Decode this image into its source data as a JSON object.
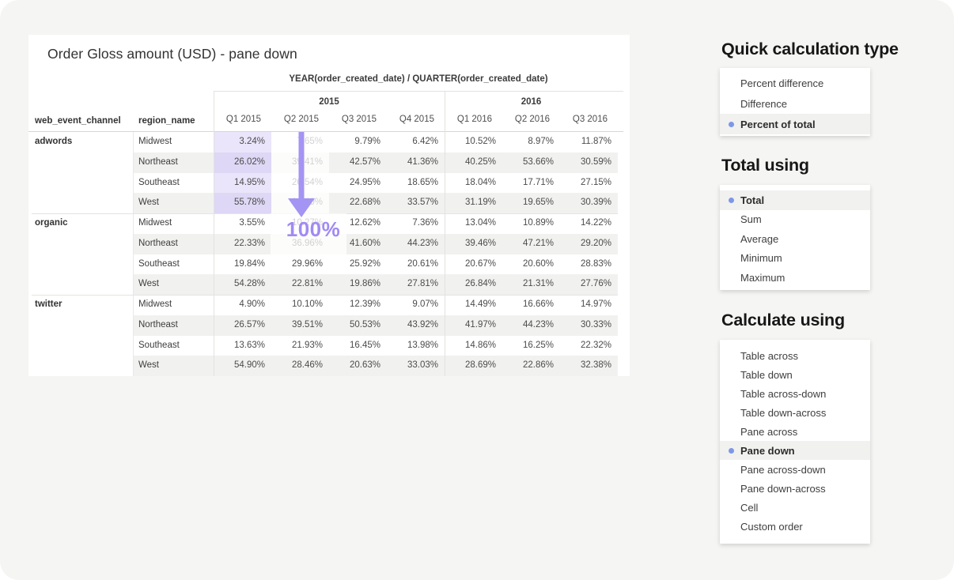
{
  "viz": {
    "title": "Order Gloss amount (USD) - pane down",
    "column_field_header": "YEAR(order_created_date) / QUARTER(order_created_date)",
    "row_field_headers": {
      "channel": "web_event_channel",
      "region": "region_name"
    },
    "year_groups": [
      {
        "label": "2015"
      },
      {
        "label": "2016"
      }
    ],
    "quarter_labels": [
      "Q1 2015",
      "Q2 2015",
      "Q3 2015",
      "Q4 2015",
      "Q1 2016",
      "Q2 2016",
      "Q3 2016"
    ],
    "panes": [
      {
        "channel": "adwords",
        "rows": [
          {
            "region": "Midwest",
            "values": [
              "3.24%",
              "7.65%",
              "9.79%",
              "6.42%",
              "10.52%",
              "8.97%",
              "11.87%"
            ]
          },
          {
            "region": "Northeast",
            "values": [
              "26.02%",
              "39.41%",
              "42.57%",
              "41.36%",
              "40.25%",
              "53.66%",
              "30.59%"
            ]
          },
          {
            "region": "Southeast",
            "values": [
              "14.95%",
              "26.54%",
              "24.95%",
              "18.65%",
              "18.04%",
              "17.71%",
              "27.15%"
            ]
          },
          {
            "region": "West",
            "values": [
              "55.78%",
              "26.40%",
              "22.68%",
              "33.57%",
              "31.19%",
              "19.65%",
              "30.39%"
            ]
          }
        ]
      },
      {
        "channel": "organic",
        "rows": [
          {
            "region": "Midwest",
            "values": [
              "3.55%",
              "10.27%",
              "12.62%",
              "7.36%",
              "13.04%",
              "10.89%",
              "14.22%"
            ]
          },
          {
            "region": "Northeast",
            "values": [
              "22.33%",
              "36.96%",
              "41.60%",
              "44.23%",
              "39.46%",
              "47.21%",
              "29.20%"
            ]
          },
          {
            "region": "Southeast",
            "values": [
              "19.84%",
              "29.96%",
              "25.92%",
              "20.61%",
              "20.67%",
              "20.60%",
              "28.83%"
            ]
          },
          {
            "region": "West",
            "values": [
              "54.28%",
              "22.81%",
              "19.86%",
              "27.81%",
              "26.84%",
              "21.31%",
              "27.76%"
            ]
          }
        ]
      },
      {
        "channel": "twitter",
        "rows": [
          {
            "region": "Midwest",
            "values": [
              "4.90%",
              "10.10%",
              "12.39%",
              "9.07%",
              "14.49%",
              "16.66%",
              "14.97%"
            ]
          },
          {
            "region": "Northeast",
            "values": [
              "26.57%",
              "39.51%",
              "50.53%",
              "43.92%",
              "41.97%",
              "44.23%",
              "30.33%"
            ]
          },
          {
            "region": "Southeast",
            "values": [
              "13.63%",
              "21.93%",
              "16.45%",
              "13.98%",
              "14.86%",
              "16.25%",
              "22.32%"
            ]
          },
          {
            "region": "West",
            "values": [
              "54.90%",
              "28.46%",
              "20.63%",
              "33.03%",
              "28.69%",
              "22.86%",
              "32.38%"
            ]
          }
        ]
      }
    ],
    "annotation": {
      "label": "100%"
    },
    "highlight": {
      "pane_index": 0,
      "column_index": 0
    },
    "dimmed_column_index": 1
  },
  "panels": [
    {
      "title": "Quick calculation type",
      "items": [
        {
          "label": "Percent difference",
          "selected": false
        },
        {
          "label": "Difference",
          "selected": false
        },
        {
          "label": "Percent of total",
          "selected": true
        }
      ]
    },
    {
      "title": "Total using",
      "items": [
        {
          "label": "Total",
          "selected": true
        },
        {
          "label": "Sum",
          "selected": false
        },
        {
          "label": "Average",
          "selected": false
        },
        {
          "label": "Minimum",
          "selected": false
        },
        {
          "label": "Maximum",
          "selected": false
        }
      ]
    },
    {
      "title": "Calculate using",
      "items": [
        {
          "label": "Table across",
          "selected": false
        },
        {
          "label": "Table down",
          "selected": false
        },
        {
          "label": "Table across-down",
          "selected": false
        },
        {
          "label": "Table down-across",
          "selected": false
        },
        {
          "label": "Pane across",
          "selected": false
        },
        {
          "label": "Pane down",
          "selected": true
        },
        {
          "label": "Pane across-down",
          "selected": false
        },
        {
          "label": "Pane down-across",
          "selected": false
        },
        {
          "label": "Cell",
          "selected": false
        },
        {
          "label": "Custom order",
          "selected": false
        }
      ]
    }
  ],
  "colors": {
    "accent_purple": "#a18af3",
    "arrow_purple": "#a494f3",
    "highlight_cell_light": "#eae5fa",
    "highlight_cell_dark": "#ded7f5",
    "selected_dot_blue": "#7d97e8",
    "row_stripe": "#f1f1ef",
    "page_background": "#f5f5f3"
  }
}
